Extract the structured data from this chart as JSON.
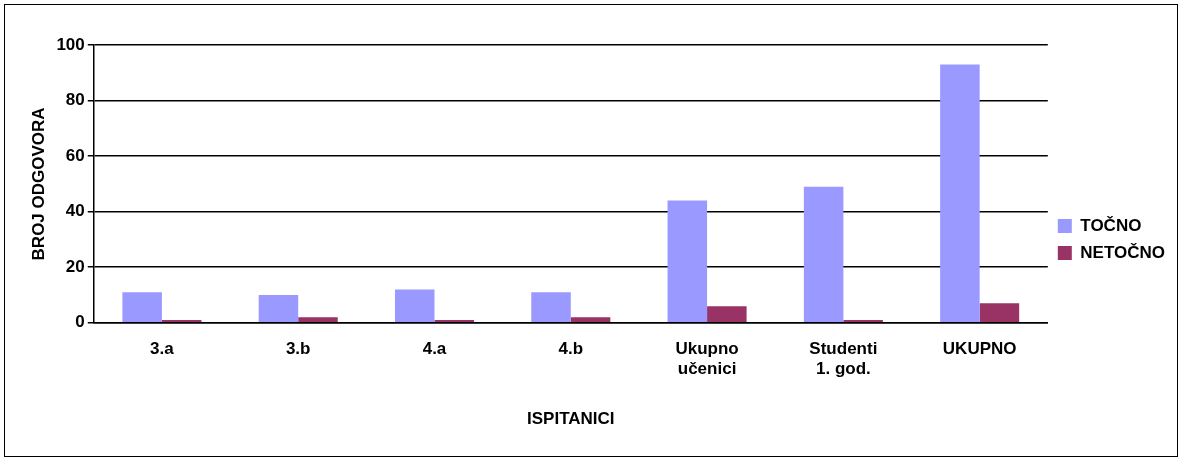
{
  "chart_data": {
    "type": "bar",
    "xlabel": "ISPITANICI",
    "ylabel": "BROJ ODGOVORA",
    "categories": [
      "3.a",
      "3.b",
      "4.a",
      "4.b",
      "Ukupno učenici",
      "Studenti 1. god.",
      "UKUPNO"
    ],
    "series": [
      {
        "name": "TOČNO",
        "color": "#9999ff",
        "values": [
          11,
          10,
          12,
          11,
          44,
          49,
          93
        ]
      },
      {
        "name": "NETOČNO",
        "color": "#993366",
        "values": [
          1,
          2,
          1,
          2,
          6,
          1,
          7
        ]
      }
    ],
    "ylim": [
      0,
      100
    ],
    "yticks": [
      0,
      20,
      40,
      60,
      80,
      100
    ],
    "grid": "y",
    "legend": "right"
  }
}
